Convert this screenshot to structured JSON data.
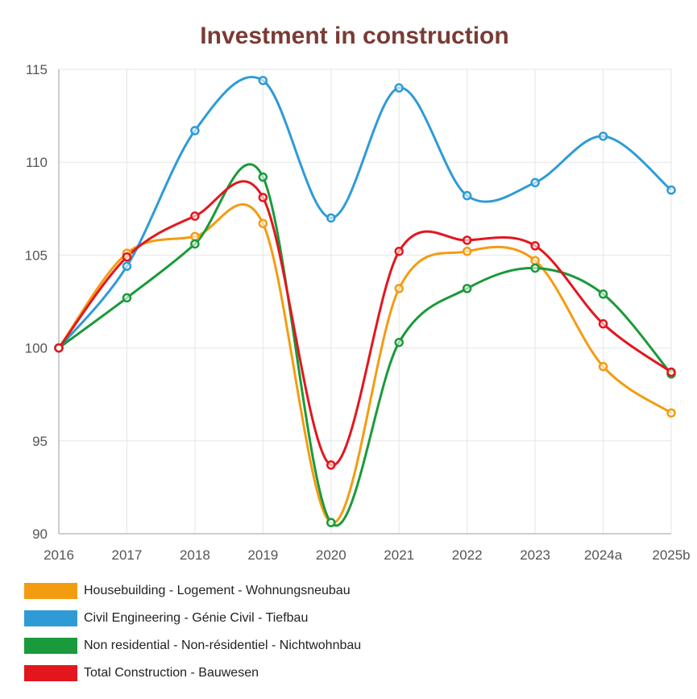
{
  "chart_data": {
    "type": "line",
    "title": "Investment in construction",
    "xlabel": "",
    "ylabel": "",
    "categories": [
      "2016",
      "2017",
      "2018",
      "2019",
      "2020",
      "2021",
      "2022",
      "2023",
      "2024a",
      "2025b"
    ],
    "ylim": [
      90,
      115
    ],
    "yticks": [
      90,
      95,
      100,
      105,
      110,
      115
    ],
    "grid": true,
    "legend_position": "bottom",
    "series": [
      {
        "name": "Housebuilding - Logement - Wohnungsneubau",
        "color": "#f39c12",
        "values": [
          100,
          105.1,
          106,
          106.7,
          90.6,
          103.2,
          105.2,
          104.7,
          99,
          96.5
        ]
      },
      {
        "name": "Civil Engineering - Génie Civil - Tiefbau",
        "color": "#2f9bd6",
        "values": [
          100,
          104.4,
          111.7,
          114.4,
          107,
          114,
          108.2,
          108.9,
          111.4,
          108.5
        ]
      },
      {
        "name": "Non residential - Non-résidentiel - Nichtwohnbau",
        "color": "#1a9a3a",
        "values": [
          100,
          102.7,
          105.6,
          109.2,
          90.6,
          100.3,
          103.2,
          104.3,
          102.9,
          98.6
        ]
      },
      {
        "name": "Total Construction - Bauwesen",
        "color": "#e3161e",
        "values": [
          100,
          104.9,
          107.1,
          108.1,
          93.7,
          105.2,
          105.8,
          105.5,
          101.3,
          98.7
        ]
      }
    ]
  }
}
